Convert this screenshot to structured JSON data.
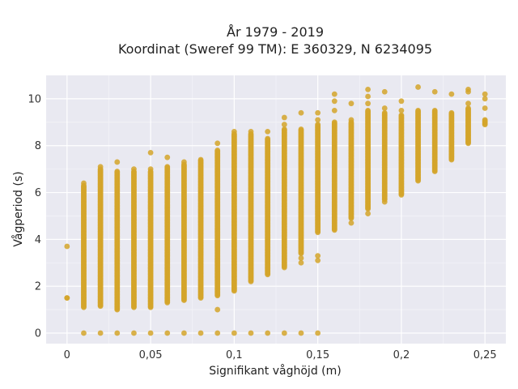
{
  "chart_data": {
    "type": "scatter",
    "title": [
      "År 1979 - 2019",
      "Koordinat (Sweref 99 TM): E 360329, N 6234095"
    ],
    "xlabel": "Signifikant våghöjd (m)",
    "ylabel": "Vågperiod (s)",
    "xlim": [
      -0.0125,
      0.2625
    ],
    "ylim": [
      -0.45,
      11.0
    ],
    "xticks": [
      0,
      0.05,
      0.1,
      0.15,
      0.2,
      0.25
    ],
    "xtick_labels": [
      "0",
      "0,05",
      "0,1",
      "0,15",
      "0,2",
      "0,25"
    ],
    "yticks": [
      0,
      2,
      4,
      6,
      8,
      10
    ],
    "ytick_labels": [
      "0",
      "2",
      "4",
      "6",
      "8",
      "10"
    ],
    "grid": true,
    "color": "#d4a42a",
    "background": "#e9e9f1",
    "columns": [
      {
        "x": 0.0,
        "ymin": 1.5,
        "ymax": 1.5,
        "extra": [
          3.7
        ],
        "zero": false
      },
      {
        "x": 0.01,
        "ymin": 1.1,
        "ymax": 6.3,
        "extra": [
          6.4
        ],
        "zero": true
      },
      {
        "x": 0.02,
        "ymin": 1.15,
        "ymax": 7.0,
        "extra": [
          7.1
        ],
        "zero": true
      },
      {
        "x": 0.03,
        "ymin": 1.0,
        "ymax": 6.9,
        "extra": [
          7.3
        ],
        "zero": true
      },
      {
        "x": 0.04,
        "ymin": 1.1,
        "ymax": 6.9,
        "extra": [
          7.0
        ],
        "zero": true
      },
      {
        "x": 0.05,
        "ymin": 1.1,
        "ymax": 6.9,
        "extra": [
          7.0,
          7.7
        ],
        "zero": true
      },
      {
        "x": 0.06,
        "ymin": 1.3,
        "ymax": 7.1,
        "extra": [
          7.5
        ],
        "zero": true
      },
      {
        "x": 0.07,
        "ymin": 1.4,
        "ymax": 7.2,
        "extra": [
          7.3
        ],
        "zero": true
      },
      {
        "x": 0.08,
        "ymin": 1.5,
        "ymax": 7.4,
        "extra": [],
        "zero": true
      },
      {
        "x": 0.09,
        "ymin": 1.6,
        "ymax": 7.8,
        "extra": [
          8.1,
          1.0
        ],
        "zero": true
      },
      {
        "x": 0.1,
        "ymin": 1.8,
        "ymax": 8.5,
        "extra": [
          8.6
        ],
        "zero": true
      },
      {
        "x": 0.11,
        "ymin": 2.2,
        "ymax": 8.5,
        "extra": [
          8.6
        ],
        "zero": true
      },
      {
        "x": 0.12,
        "ymin": 2.5,
        "ymax": 8.3,
        "extra": [
          8.6
        ],
        "zero": true
      },
      {
        "x": 0.13,
        "ymin": 2.8,
        "ymax": 8.7,
        "extra": [
          8.9,
          9.2
        ],
        "zero": true
      },
      {
        "x": 0.14,
        "ymin": 3.4,
        "ymax": 8.7,
        "extra": [
          3.0,
          3.2,
          9.4
        ],
        "zero": true
      },
      {
        "x": 0.15,
        "ymin": 4.3,
        "ymax": 8.9,
        "extra": [
          3.1,
          3.3,
          9.1,
          9.4
        ],
        "zero": true
      },
      {
        "x": 0.16,
        "ymin": 4.4,
        "ymax": 9.0,
        "extra": [
          9.5,
          9.9,
          10.2
        ],
        "zero": false
      },
      {
        "x": 0.17,
        "ymin": 4.9,
        "ymax": 9.0,
        "extra": [
          4.7,
          9.1,
          9.8
        ],
        "zero": false
      },
      {
        "x": 0.18,
        "ymin": 5.3,
        "ymax": 9.5,
        "extra": [
          5.1,
          9.8,
          10.1,
          10.4
        ],
        "zero": false
      },
      {
        "x": 0.19,
        "ymin": 5.7,
        "ymax": 9.4,
        "extra": [
          5.6,
          9.6,
          10.3
        ],
        "zero": false
      },
      {
        "x": 0.2,
        "ymin": 5.9,
        "ymax": 9.3,
        "extra": [
          9.5,
          9.9
        ],
        "zero": false
      },
      {
        "x": 0.21,
        "ymin": 6.5,
        "ymax": 9.5,
        "extra": [
          10.5
        ],
        "zero": false
      },
      {
        "x": 0.22,
        "ymin": 6.9,
        "ymax": 9.5,
        "extra": [
          10.3
        ],
        "zero": false
      },
      {
        "x": 0.23,
        "ymin": 7.4,
        "ymax": 9.4,
        "extra": [
          10.2
        ],
        "zero": false
      },
      {
        "x": 0.24,
        "ymin": 8.1,
        "ymax": 9.6,
        "extra": [
          9.8,
          10.3,
          10.4
        ],
        "zero": false
      },
      {
        "x": 0.25,
        "ymin": 8.9,
        "ymax": 9.1,
        "extra": [
          9.6,
          10.0,
          10.2
        ],
        "zero": false
      }
    ]
  }
}
